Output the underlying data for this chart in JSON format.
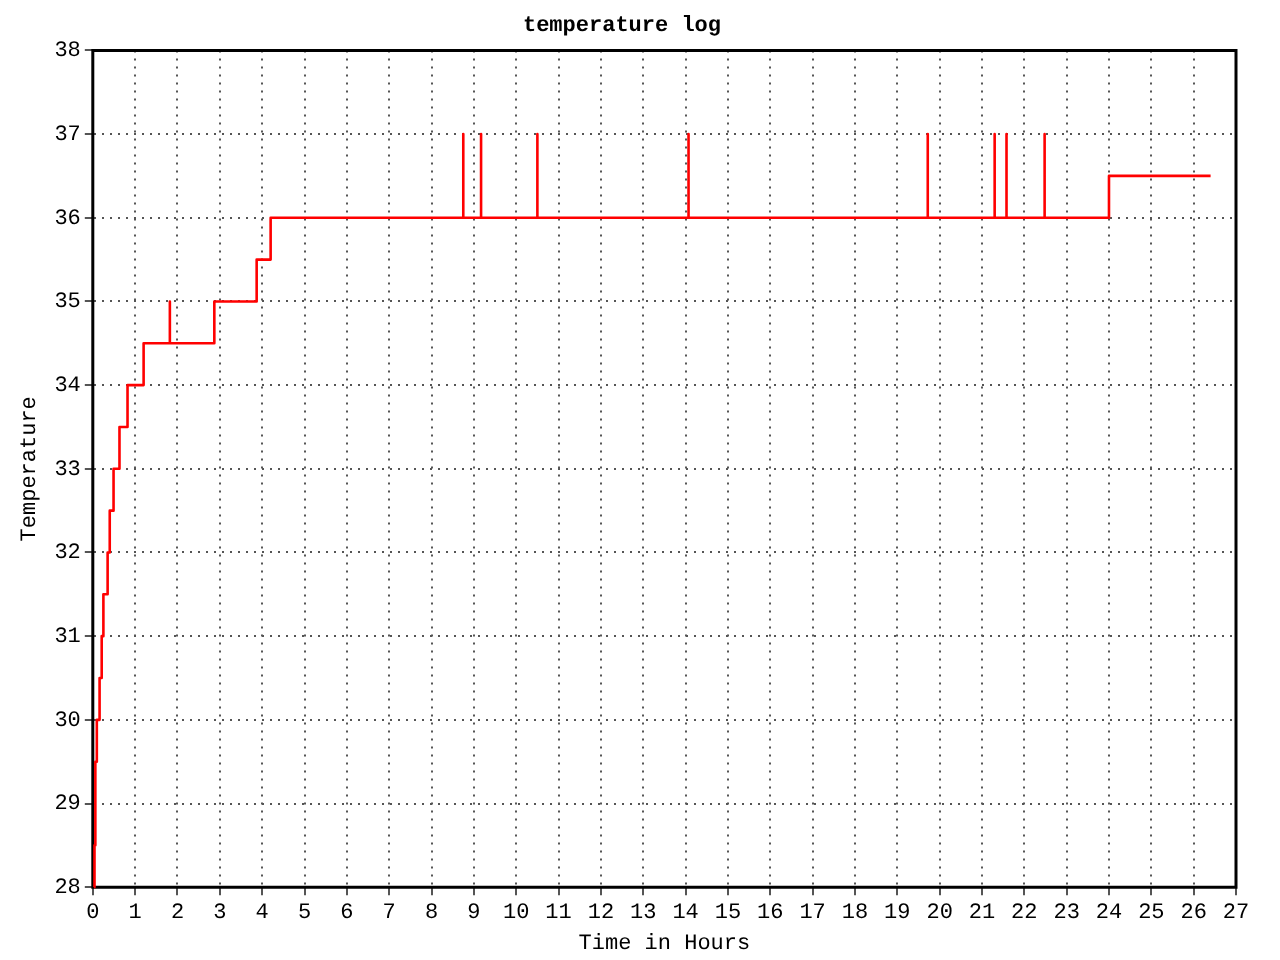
{
  "chart_data": {
    "type": "step",
    "title": "temperature log",
    "xlabel": "Time in Hours",
    "ylabel": "Temperature",
    "x": [
      0.03,
      0.04,
      0.06,
      0.095,
      0.16,
      0.21,
      0.25,
      0.35,
      0.4,
      0.49,
      0.63,
      0.82,
      1.2,
      1.82,
      1.82,
      2.87,
      3.87,
      4.2,
      8.75,
      8.75,
      9.17,
      9.17,
      10.5,
      10.5,
      14.07,
      14.07,
      19.72,
      19.72,
      21.3,
      21.3,
      21.58,
      21.58,
      22.48,
      22.48,
      24.0,
      26.4
    ],
    "series": [
      {
        "color": "#ff0000",
        "values": [
          28,
          28.5,
          29.5,
          30,
          30.5,
          31,
          31.5,
          32,
          32.5,
          33,
          33.5,
          34,
          34.5,
          35,
          34.5,
          35,
          35.5,
          36,
          37,
          36,
          37,
          36,
          37,
          36,
          37,
          36,
          37,
          36,
          37,
          36,
          37,
          36,
          37,
          36,
          36.5,
          36.5
        ]
      }
    ],
    "xlim": [
      0,
      27
    ],
    "xticks": [
      0,
      1,
      2,
      3,
      4,
      5,
      6,
      7,
      8,
      9,
      10,
      11,
      12,
      13,
      14,
      15,
      16,
      17,
      18,
      19,
      20,
      21,
      22,
      23,
      24,
      25,
      26,
      27
    ],
    "ylim": [
      28,
      38
    ],
    "yticks": [
      28,
      29,
      30,
      31,
      32,
      33,
      34,
      35,
      36,
      37,
      38
    ],
    "grid": true,
    "legend": false,
    "marker": "none",
    "line_style": "solid"
  }
}
